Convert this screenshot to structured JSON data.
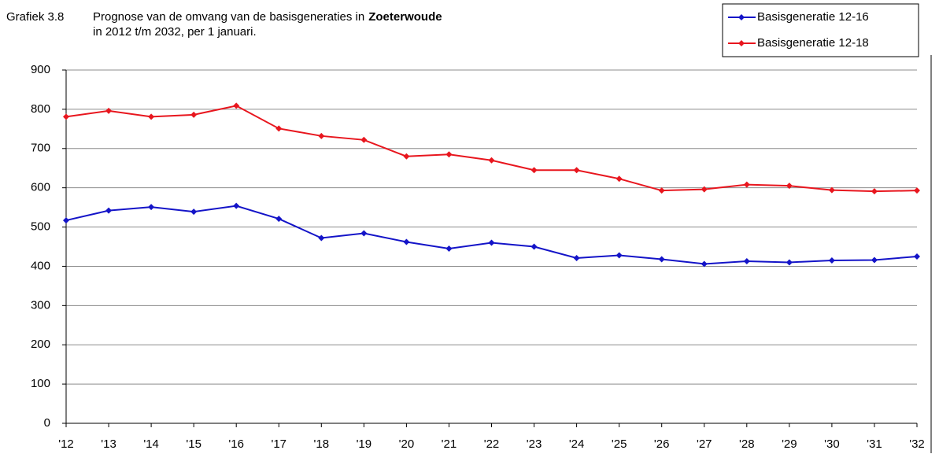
{
  "chart_data": {
    "type": "line",
    "figure_label": "Grafiek 3.8",
    "title": "Prognose van de omvang van de basisgeneraties in",
    "title_emphasis": "Zoeterwoude",
    "subtitle": "in 2012 t/m 2032, per 1 januari.",
    "categories": [
      "'12",
      "'13",
      "'14",
      "'15",
      "'16",
      "'17",
      "'18",
      "'19",
      "'20",
      "'21",
      "'22",
      "'23",
      "'24",
      "'25",
      "'26",
      "'27",
      "'28",
      "'29",
      "'30",
      "'31",
      "'32"
    ],
    "series": [
      {
        "name": "Basisgeneratie 12-16",
        "color": "#1414c8",
        "values": [
          517,
          542,
          551,
          539,
          554,
          521,
          472,
          484,
          462,
          445,
          460,
          450,
          421,
          428,
          418,
          406,
          413,
          410,
          415,
          416,
          425
        ]
      },
      {
        "name": "Basisgeneratie 12-18",
        "color": "#e8161e",
        "values": [
          781,
          796,
          781,
          786,
          809,
          751,
          732,
          722,
          680,
          685,
          670,
          645,
          645,
          623,
          593,
          596,
          608,
          605,
          594,
          591,
          593
        ]
      }
    ],
    "ylim": [
      0,
      900
    ],
    "yticks": [
      0,
      100,
      200,
      300,
      400,
      500,
      600,
      700,
      800,
      900
    ],
    "grid": true,
    "legend": "top-right"
  }
}
